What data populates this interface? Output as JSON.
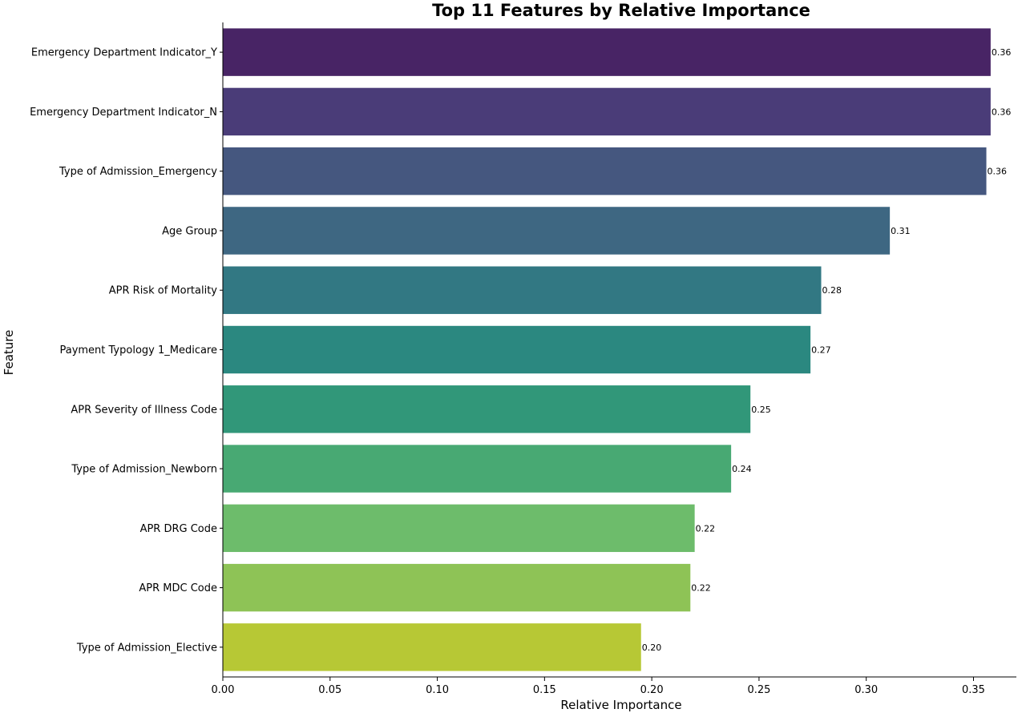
{
  "chart_data": {
    "type": "bar",
    "orientation": "horizontal",
    "title": "Top 11 Features by Relative Importance",
    "xlabel": "Relative Importance",
    "ylabel": "Feature",
    "xlim": [
      0,
      0.37
    ],
    "xticks": [
      0.0,
      0.05,
      0.1,
      0.15,
      0.2,
      0.25,
      0.3,
      0.35
    ],
    "xtick_labels": [
      "0.00",
      "0.05",
      "0.10",
      "0.15",
      "0.20",
      "0.25",
      "0.30",
      "0.35"
    ],
    "grid": false,
    "categories": [
      "Emergency Department Indicator_Y",
      "Emergency Department Indicator_N",
      "Type of Admission_Emergency",
      "Age Group",
      "APR Risk of Mortality",
      "Payment Typology 1_Medicare",
      "APR Severity of Illness Code",
      "Type of Admission_Newborn",
      "APR DRG Code",
      "APR MDC Code",
      "Type of Admission_Elective"
    ],
    "values": [
      0.358,
      0.358,
      0.356,
      0.311,
      0.279,
      0.274,
      0.246,
      0.237,
      0.22,
      0.218,
      0.195
    ],
    "value_labels": [
      "0.36",
      "0.36",
      "0.36",
      "0.31",
      "0.28",
      "0.27",
      "0.25",
      "0.24",
      "0.22",
      "0.22",
      "0.20"
    ],
    "colors": [
      "#482465",
      "#4a3c78",
      "#45577f",
      "#3e6782",
      "#327883",
      "#2b8880",
      "#319779",
      "#48a973",
      "#6dbc6b",
      "#8ec356",
      "#b7c835"
    ]
  }
}
